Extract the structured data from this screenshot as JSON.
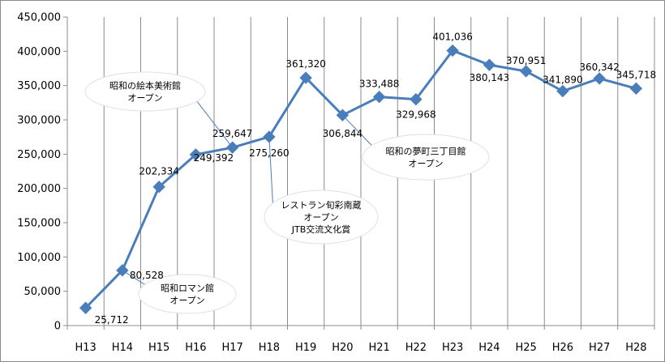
{
  "chart_data": {
    "type": "line",
    "categories": [
      "H13",
      "H14",
      "H15",
      "H16",
      "H17",
      "H18",
      "H19",
      "H20",
      "H21",
      "H22",
      "H23",
      "H24",
      "H25",
      "H26",
      "H27",
      "H28"
    ],
    "series": [
      {
        "values": [
          25712,
          80528,
          202334,
          249392,
          259647,
          275260,
          361320,
          306844,
          333488,
          329968,
          401036,
          380143,
          370951,
          341890,
          360342,
          345718
        ],
        "labels": [
          "25,712",
          "80,528",
          "202,334",
          "249,392",
          "259,647",
          "275,260",
          "361,320",
          "306,844",
          "333,488",
          "329,968",
          "401,036",
          "380,143",
          "370,951",
          "341,890",
          "360,342",
          "345,718"
        ],
        "color": "#4a7ebb"
      }
    ],
    "ylim": [
      0,
      450000
    ],
    "yticks": [
      0,
      50000,
      100000,
      150000,
      200000,
      250000,
      300000,
      350000,
      400000,
      450000
    ],
    "ytick_labels": [
      "0",
      "50,000",
      "100,000",
      "150,000",
      "200,000",
      "250,000",
      "300,000",
      "350,000",
      "400,000",
      "450,000"
    ],
    "grid": true,
    "gridlines": "vertical",
    "marker": "diamond",
    "title": "",
    "xlabel": "",
    "ylabel": "",
    "annotations": [
      {
        "lines": [
          "昭和ロマン館",
          "オープン"
        ],
        "category": "H14"
      },
      {
        "lines": [
          "昭和の絵本美術館",
          "オープン"
        ],
        "category": "H17"
      },
      {
        "lines": [
          "レストラン旬彩南蔵",
          "オープン",
          "JTB交流文化賞"
        ],
        "category": "H18"
      },
      {
        "lines": [
          "昭和の夢町三丁目館",
          "オープン"
        ],
        "category": "H20"
      }
    ]
  }
}
